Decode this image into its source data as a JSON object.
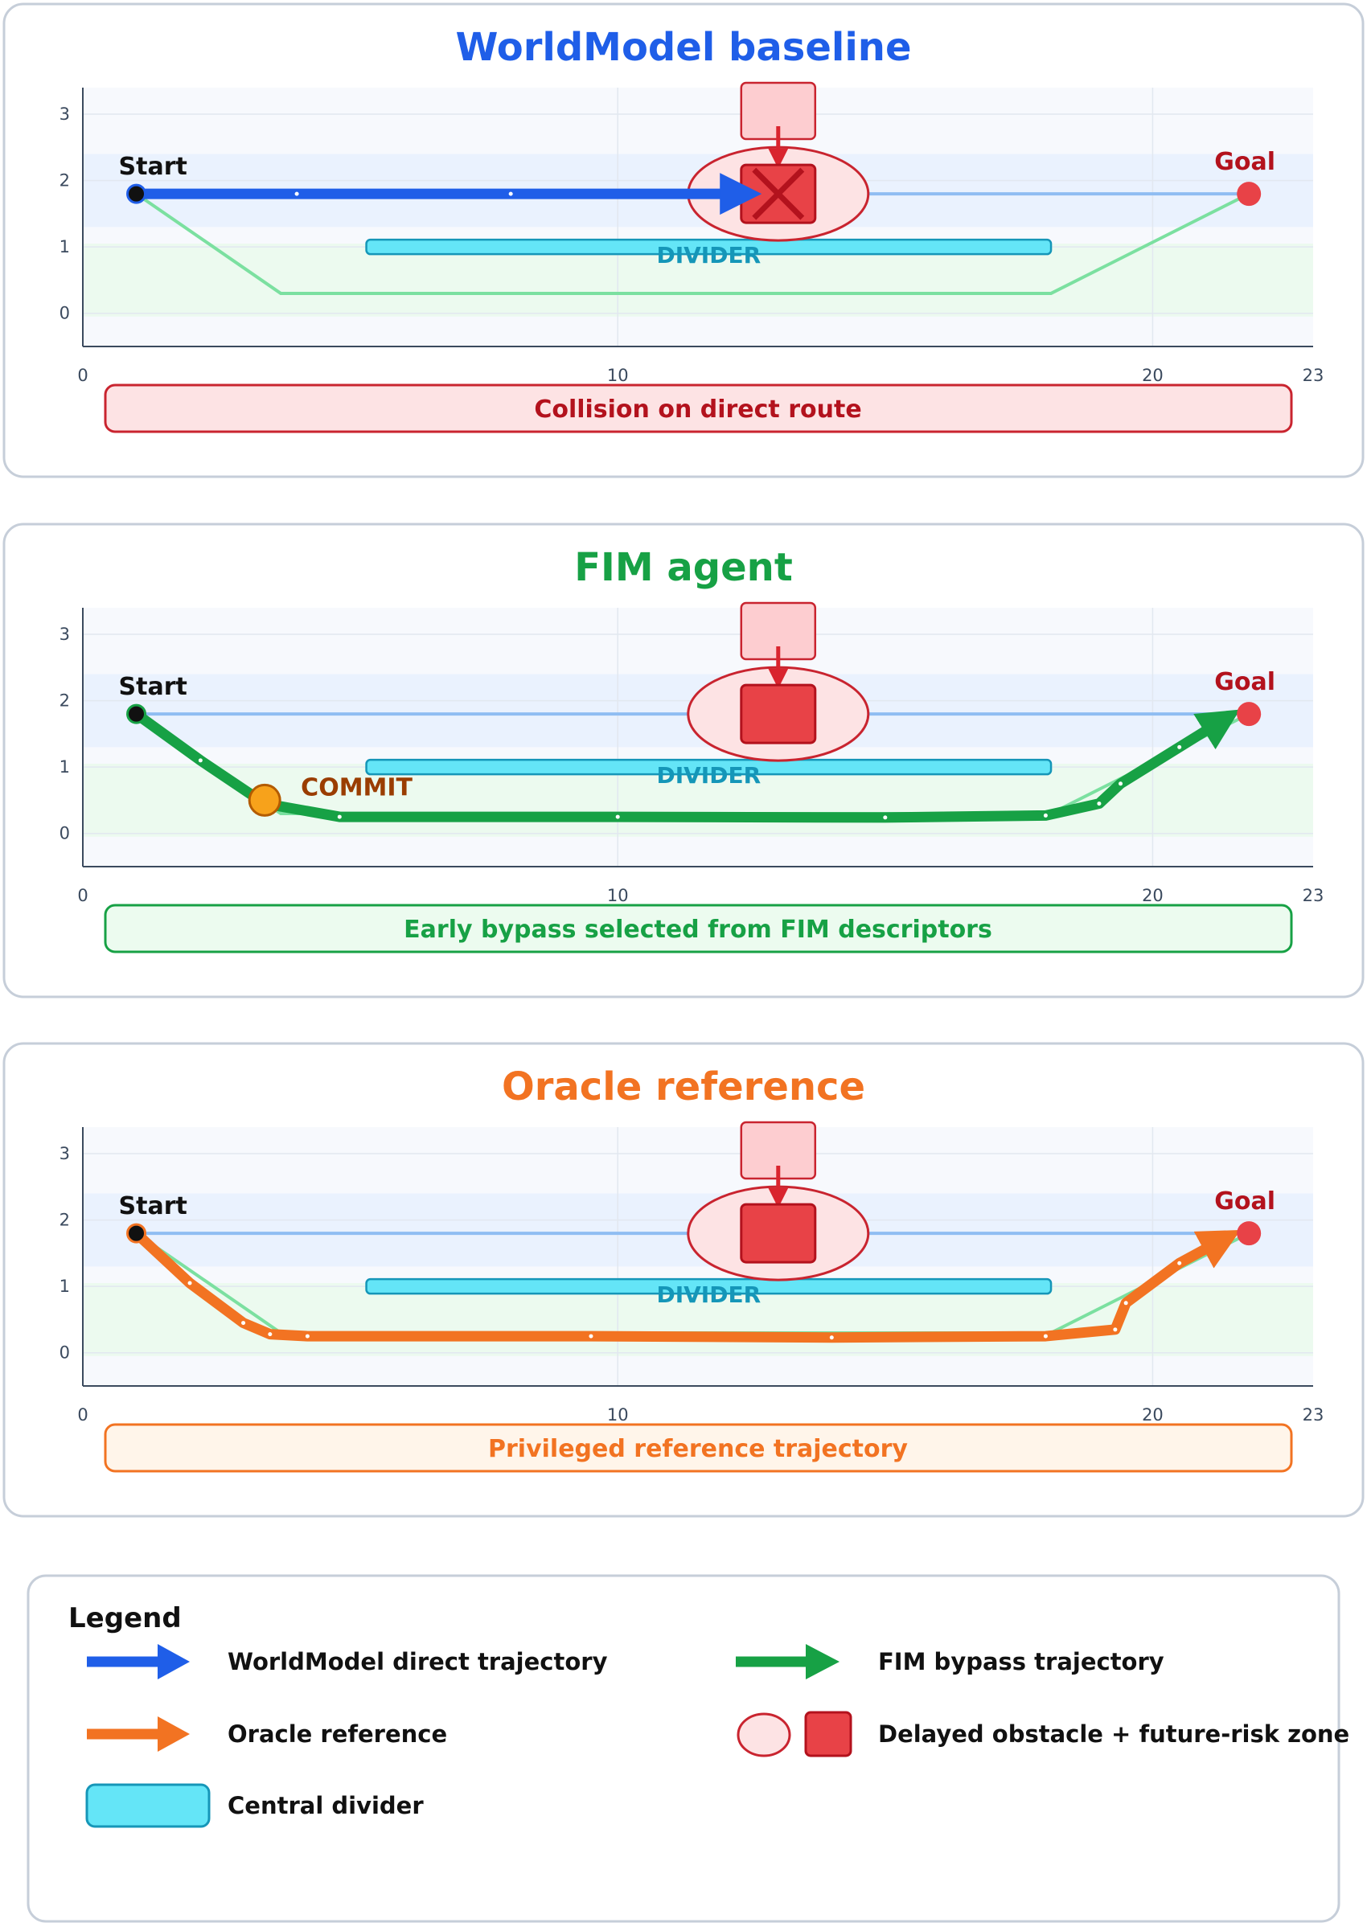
{
  "panels": [
    {
      "id": "worldmodel",
      "title": "WorldModel baseline",
      "title_color": "#1f5ee8",
      "banner": "Collision on direct route",
      "banner_fill": "#fde3e4",
      "banner_stroke": "#c9242f",
      "banner_text_color": "#b3121d",
      "start_label": "Start",
      "goal_label": "Goal",
      "divider_label": "DIVIDER",
      "collision": true,
      "commit": null
    },
    {
      "id": "fim",
      "title": "FIM agent",
      "title_color": "#17a145",
      "banner": "Early bypass selected from FIM descriptors",
      "banner_fill": "#ecfbef",
      "banner_stroke": "#17a145",
      "banner_text_color": "#17a145",
      "start_label": "Start",
      "goal_label": "Goal",
      "divider_label": "DIVIDER",
      "collision": false,
      "commit": {
        "label": "COMMIT",
        "x": 3.4,
        "y": 0.5
      }
    },
    {
      "id": "oracle",
      "title": "Oracle reference",
      "title_color": "#f27322",
      "banner": "Privileged reference trajectory",
      "banner_fill": "#fff5ea",
      "banner_stroke": "#f27322",
      "banner_text_color": "#f27322",
      "start_label": "Start",
      "goal_label": "Goal",
      "divider_label": "DIVIDER",
      "collision": false,
      "commit": null
    }
  ],
  "axes": {
    "x_ticks": [
      "0",
      "10",
      "20",
      "23"
    ],
    "y_ticks": [
      "0",
      "1",
      "2",
      "3"
    ]
  },
  "chart_data": {
    "type": "line",
    "xlim": [
      0,
      23
    ],
    "ylim": [
      -0.5,
      3.4
    ],
    "start": {
      "x": 1,
      "y": 1.8
    },
    "goal": {
      "x": 21.8,
      "y": 1.8
    },
    "obstacle": {
      "x": 13,
      "y": 1.8
    },
    "divider": {
      "x0": 5.3,
      "x1": 18.1,
      "y": 1.0
    },
    "series": [
      {
        "name": "WorldModel direct trajectory",
        "color": "#1f5ee8",
        "x": [
          1,
          4,
          8,
          12.3
        ],
        "y": [
          1.8,
          1.8,
          1.8,
          1.8
        ]
      },
      {
        "name": "FIM bypass trajectory",
        "color": "#17a145",
        "x": [
          1,
          2.2,
          3.4,
          4.8,
          10,
          15,
          18,
          19,
          19.4,
          20.5,
          21.3
        ],
        "y": [
          1.8,
          1.1,
          0.45,
          0.25,
          0.25,
          0.24,
          0.27,
          0.45,
          0.75,
          1.3,
          1.7
        ]
      },
      {
        "name": "Oracle reference",
        "color": "#f27322",
        "x": [
          1,
          2,
          3,
          3.5,
          4.2,
          9.5,
          14,
          18,
          19.3,
          19.5,
          20.5,
          21.3
        ],
        "y": [
          1.8,
          1.05,
          0.45,
          0.28,
          0.25,
          0.25,
          0.23,
          0.25,
          0.35,
          0.75,
          1.35,
          1.7
        ]
      },
      {
        "name": "Nominal direct route",
        "color": "#8fbdf2",
        "x": [
          1,
          21.8
        ],
        "y": [
          1.8,
          1.8
        ]
      },
      {
        "name": "Nominal bypass route",
        "color": "#7be0a0",
        "x": [
          1,
          3.7,
          18.1,
          21.8
        ],
        "y": [
          1.8,
          0.3,
          0.3,
          1.8
        ]
      }
    ]
  },
  "legend": {
    "title": "Legend",
    "items": [
      {
        "label": "WorldModel direct trajectory",
        "kind": "arrow",
        "color": "#1f5ee8"
      },
      {
        "label": "FIM bypass trajectory",
        "kind": "arrow",
        "color": "#17a145"
      },
      {
        "label": "Oracle reference",
        "kind": "arrow",
        "color": "#f27322"
      },
      {
        "label": "Delayed obstacle + future-risk zone",
        "kind": "obstacle",
        "color": "#e84247"
      },
      {
        "label": "Central divider",
        "kind": "divider",
        "color": "#64e5f7"
      }
    ]
  }
}
